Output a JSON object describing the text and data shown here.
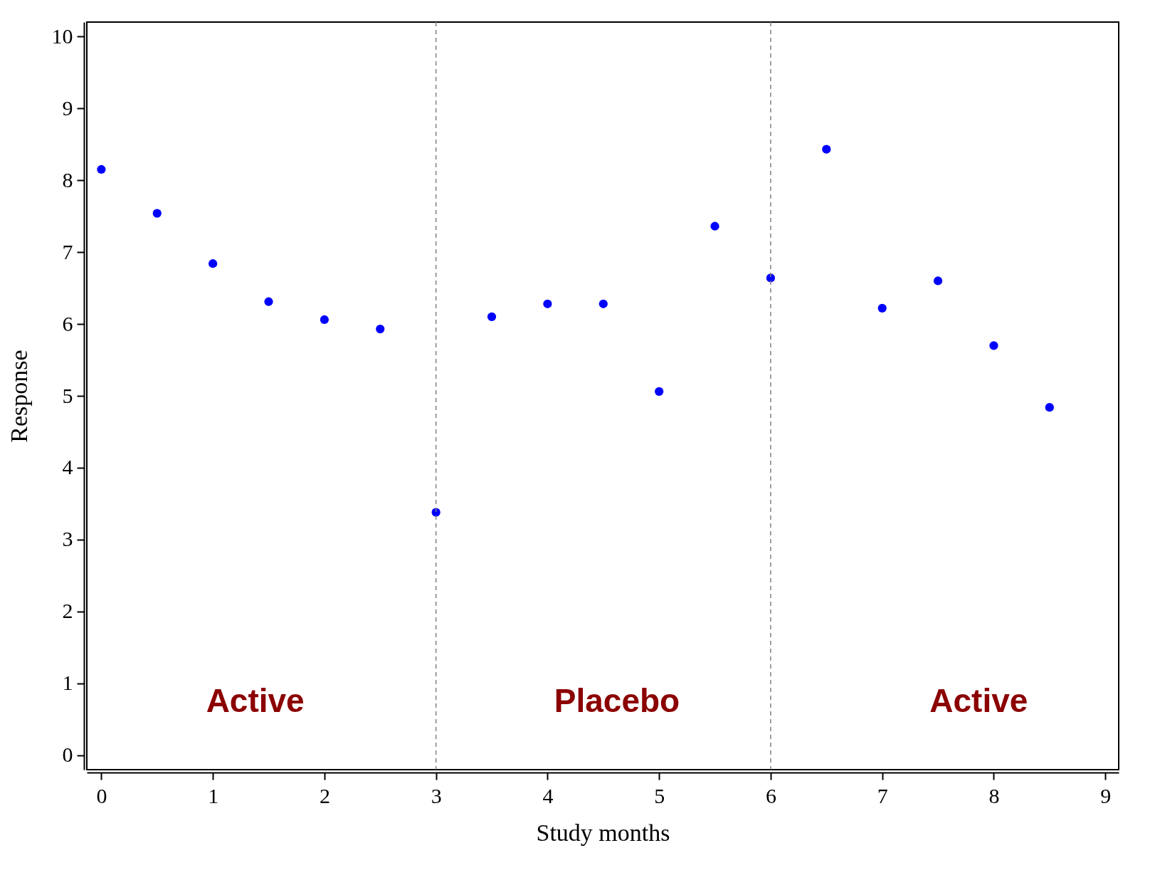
{
  "chart_data": {
    "type": "scatter",
    "xlabel": "Study months",
    "ylabel": "Response",
    "x": [
      0,
      0.5,
      1,
      1.5,
      2,
      2.5,
      3,
      3.5,
      4,
      4.5,
      5,
      5.5,
      6,
      6.5,
      7,
      7.5,
      8,
      8.5
    ],
    "series": [
      {
        "color": "#0000ff",
        "values": [
          8.15,
          7.54,
          6.84,
          6.31,
          6.06,
          5.93,
          3.38,
          6.1,
          6.28,
          6.28,
          5.06,
          7.36,
          6.64,
          8.43,
          6.22,
          6.6,
          5.7,
          4.84
        ]
      }
    ],
    "marker": "circle",
    "grid": false,
    "xlim": [
      -0.13,
      9.12
    ],
    "xticks": [
      0,
      1,
      2,
      3,
      4,
      5,
      6,
      7,
      8,
      9
    ],
    "ylim": [
      -0.2,
      10.2
    ],
    "yticks": [
      0,
      1,
      2,
      3,
      4,
      5,
      6,
      7,
      8,
      9,
      10
    ],
    "ref_lines": [
      {
        "axis": "x",
        "value": 3,
        "color": "#808080",
        "line_style": "dashed"
      },
      {
        "axis": "x",
        "value": 6,
        "color": "#808080",
        "line_style": "dashed"
      }
    ],
    "annotations": [
      "Active",
      "Placebo",
      "Active"
    ]
  }
}
